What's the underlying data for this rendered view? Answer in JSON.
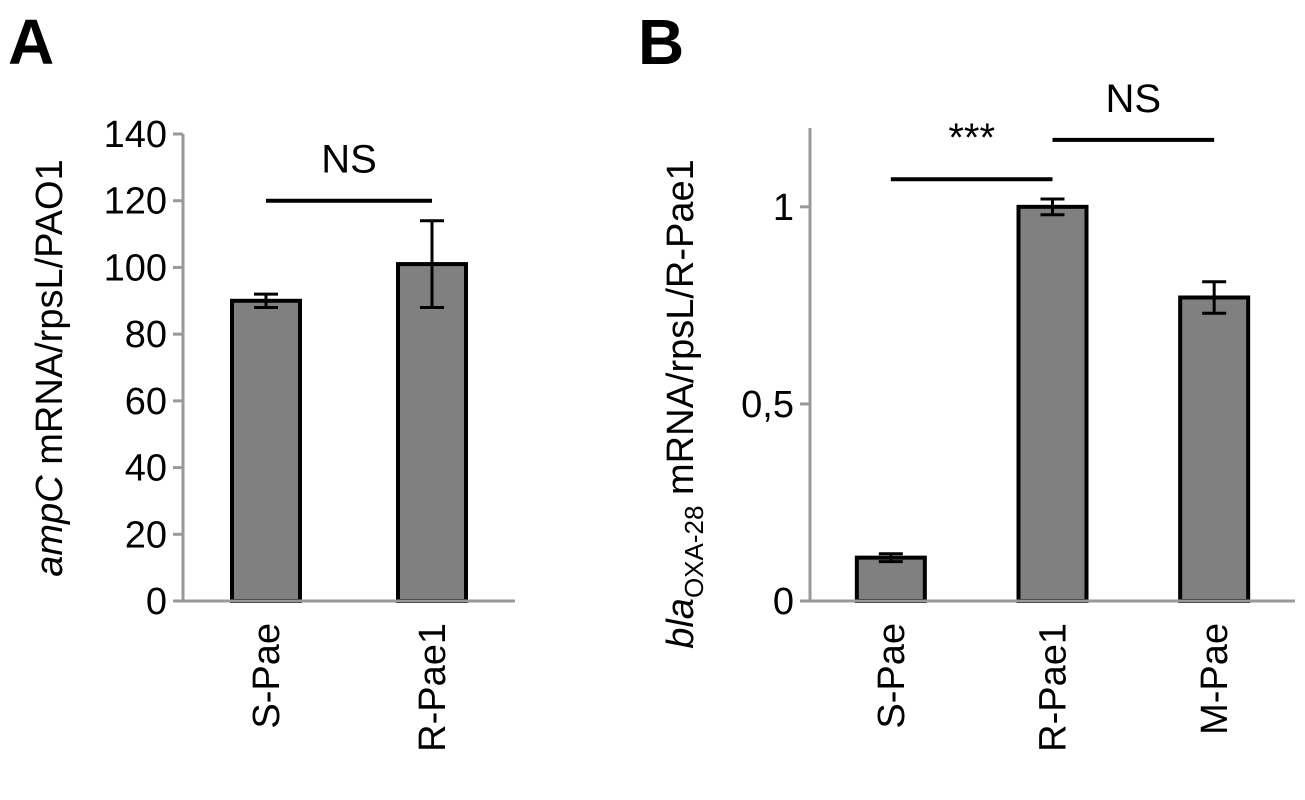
{
  "chart_data": [
    {
      "panel_label": "A",
      "type": "bar",
      "categories": [
        "S-Pae",
        "R-Pae1"
      ],
      "values": [
        90,
        101
      ],
      "errors": [
        2,
        13
      ],
      "ylabel_italic": "ampC",
      "ylabel_rest": " mRNA/rpsL/PAO1",
      "ylim": [
        0,
        140
      ],
      "yticks": [
        0,
        20,
        40,
        60,
        80,
        100,
        120,
        140
      ],
      "ytick_labels": [
        "0",
        "20",
        "40",
        "60",
        "80",
        "100",
        "120",
        "140"
      ],
      "grid": false,
      "bar_color": "#808080",
      "annotations": [
        {
          "label": "NS",
          "from": 0,
          "to": 1,
          "y": 120
        }
      ]
    },
    {
      "panel_label": "B",
      "type": "bar",
      "categories": [
        "S-Pae",
        "R-Pae1",
        "M-Pae"
      ],
      "values": [
        0.11,
        1.0,
        0.77
      ],
      "errors": [
        0.01,
        0.02,
        0.04
      ],
      "ylabel_italic": "bla",
      "ylabel_sub": "OXA-28",
      "ylabel_rest": " mRNA/rpsL/R-Pae1",
      "ylim": [
        0,
        1.2
      ],
      "yticks": [
        0,
        0.5,
        1
      ],
      "ytick_labels": [
        "0",
        "0,5",
        "1"
      ],
      "grid": false,
      "bar_color": "#808080",
      "annotations": [
        {
          "label": "***",
          "from": 0,
          "to": 1,
          "y": 1.07
        },
        {
          "label": "NS",
          "from": 1,
          "to": 2,
          "y": 1.17
        }
      ]
    }
  ]
}
